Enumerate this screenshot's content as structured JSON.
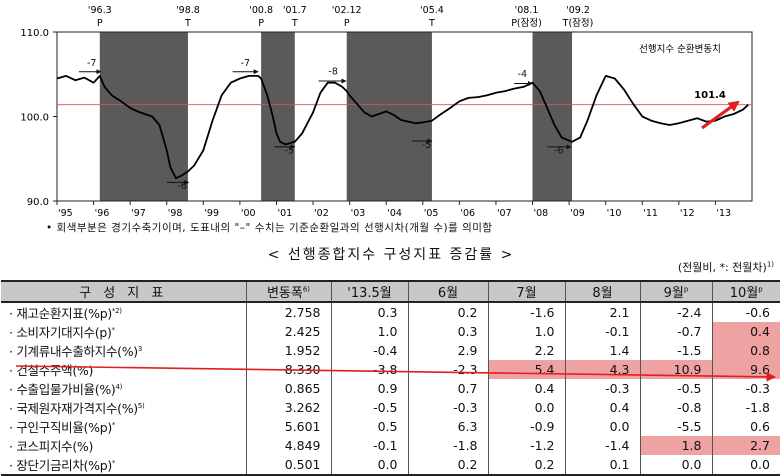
{
  "chart": {
    "y_ticks": [
      "110.0",
      "100.0",
      "90.0"
    ],
    "x_ticks": [
      "'95",
      "'96",
      "'97",
      "'98",
      "'99",
      "'00",
      "'01",
      "'02",
      "'03",
      "'04",
      "'05",
      "'06",
      "'07",
      "'08",
      "'09",
      "'10",
      "'11",
      "'12",
      "'13"
    ],
    "legend_label": "선행지수 순환변동치",
    "end_value_label": "101.4",
    "turning_points": [
      {
        "date": "'96.3",
        "type": "P"
      },
      {
        "date": "'98.8",
        "type": "T"
      },
      {
        "date": "'00.8",
        "type": "P"
      },
      {
        "date": "'01.7",
        "type": "T"
      },
      {
        "date": "'02.12",
        "type": "P"
      },
      {
        "date": "'05.4",
        "type": "T"
      },
      {
        "date": "'08.1",
        "type": "P(잠정)"
      },
      {
        "date": "'09.2",
        "type": "T(잠정)"
      }
    ],
    "lead_labels": [
      "-7",
      "-6",
      "-7",
      "-5",
      "-8",
      "-5",
      "-4",
      "-6"
    ]
  },
  "chart_data": {
    "type": "line",
    "ylim": [
      90,
      110
    ],
    "xlim": [
      1995,
      2014
    ],
    "reference_line": 101.4,
    "shaded_periods": [
      [
        1996.17,
        1998.58
      ],
      [
        2000.58,
        2001.5
      ],
      [
        2002.92,
        2005.25
      ],
      [
        2008.0,
        2009.08
      ]
    ],
    "series": [
      {
        "name": "선행지수 순환변동치",
        "x": [
          1995.0,
          1995.25,
          1995.5,
          1995.75,
          1996.0,
          1996.17,
          1996.3,
          1996.5,
          1996.75,
          1997.0,
          1997.2,
          1997.4,
          1997.6,
          1997.8,
          1997.9,
          1998.0,
          1998.1,
          1998.25,
          1998.4,
          1998.58,
          1998.75,
          1999.0,
          1999.25,
          1999.5,
          1999.75,
          2000.0,
          2000.25,
          2000.5,
          2000.58,
          2000.75,
          2000.9,
          2001.0,
          2001.1,
          2001.25,
          2001.5,
          2001.7,
          2002.0,
          2002.2,
          2002.4,
          2002.6,
          2002.8,
          2002.92,
          2003.0,
          2003.2,
          2003.4,
          2003.6,
          2003.8,
          2004.0,
          2004.2,
          2004.4,
          2004.6,
          2004.8,
          2005.0,
          2005.25,
          2005.5,
          2005.75,
          2006.0,
          2006.25,
          2006.5,
          2006.75,
          2007.0,
          2007.25,
          2007.5,
          2007.75,
          2008.0,
          2008.2,
          2008.4,
          2008.6,
          2008.8,
          2009.08,
          2009.3,
          2009.5,
          2009.75,
          2010.0,
          2010.25,
          2010.5,
          2010.75,
          2011.0,
          2011.25,
          2011.5,
          2011.75,
          2012.0,
          2012.25,
          2012.5,
          2012.75,
          2013.0,
          2013.25,
          2013.5,
          2013.75,
          2013.9
        ],
        "values": [
          104.5,
          104.8,
          104.3,
          104.6,
          104.0,
          104.8,
          103.5,
          102.5,
          101.8,
          101.0,
          100.6,
          100.3,
          100.0,
          99.0,
          97.5,
          96.0,
          94.0,
          92.7,
          93.0,
          93.5,
          94.2,
          96.0,
          99.5,
          102.5,
          104.0,
          104.5,
          104.8,
          104.8,
          104.5,
          102.5,
          100.0,
          98.0,
          97.0,
          96.7,
          97.0,
          98.0,
          100.5,
          102.8,
          104.0,
          104.0,
          103.5,
          103.0,
          102.5,
          101.5,
          100.5,
          100.0,
          100.3,
          100.6,
          100.2,
          99.6,
          99.4,
          99.2,
          99.3,
          99.5,
          100.3,
          101.0,
          101.8,
          102.2,
          102.3,
          102.5,
          102.8,
          103.0,
          103.3,
          103.5,
          104.0,
          103.0,
          101.0,
          99.0,
          97.5,
          97.0,
          97.5,
          99.5,
          102.5,
          104.8,
          104.5,
          103.2,
          101.5,
          100.0,
          99.5,
          99.2,
          99.0,
          99.2,
          99.5,
          99.8,
          99.4,
          99.5,
          100.0,
          100.3,
          100.8,
          101.4
        ]
      }
    ]
  },
  "footnote": "• 회색부분은 경기수축기이며, 도표내의 \"–\" 수치는 기준순환일과의 선행시차(개월 수)를 의미함",
  "table": {
    "title": "< 선행종합지수 구성지표 증감률 >",
    "unit_note": "(전월비, *: 전월차)",
    "unit_note_sup": "1)",
    "headers": [
      {
        "text": "구 성 지 표",
        "sup": ""
      },
      {
        "text": "변동폭",
        "sup": "6)"
      },
      {
        "text": "'13.5월",
        "sup": ""
      },
      {
        "text": "6월",
        "sup": ""
      },
      {
        "text": "7월",
        "sup": ""
      },
      {
        "text": "8월",
        "sup": ""
      },
      {
        "text": "9월",
        "sup": "p"
      },
      {
        "text": "10월",
        "sup": "p"
      }
    ],
    "rows": [
      {
        "label": "· 재고순환지표(%p)",
        "sup": "*2)",
        "cells": [
          "2.758",
          "0.3",
          "0.2",
          "-1.6",
          "2.1",
          "-2.4",
          "-0.6"
        ],
        "hl": []
      },
      {
        "label": "· 소비자기대지수(p)",
        "sup": "*",
        "cells": [
          "2.425",
          "1.0",
          "0.3",
          "1.0",
          "-0.1",
          "-0.7",
          "0.4"
        ],
        "hl": [
          6
        ]
      },
      {
        "label": "· 기계류내수출하지수(%)",
        "sup": "3",
        "cells": [
          "1.952",
          "-0.4",
          "2.9",
          "2.2",
          "1.4",
          "-1.5",
          "0.8"
        ],
        "hl": [
          6
        ]
      },
      {
        "label": "· 건설수주액(%)",
        "sup": "",
        "cells": [
          "8.330",
          "-3.8",
          "-2.3",
          "5.4",
          "4.3",
          "10.9",
          "9.6"
        ],
        "hl": [
          3,
          4,
          5,
          6
        ]
      },
      {
        "label": "· 수출입물가비율(%)",
        "sup": "4)",
        "cells": [
          "0.865",
          "0.9",
          "0.7",
          "0.4",
          "-0.3",
          "-0.5",
          "-0.3"
        ],
        "hl": []
      },
      {
        "label": "· 국제원자재가격지수(%)",
        "sup": "5)",
        "cells": [
          "3.262",
          "-0.5",
          "-0.3",
          "0.0",
          "0.4",
          "-0.8",
          "-1.8"
        ],
        "hl": []
      },
      {
        "label": "· 구인구직비율(%p)",
        "sup": "*",
        "cells": [
          "5.601",
          "0.5",
          "6.3",
          "-0.9",
          "0.0",
          "-5.5",
          "0.6"
        ],
        "hl": []
      },
      {
        "label": "· 코스피지수(%)",
        "sup": "",
        "cells": [
          "4.849",
          "-0.1",
          "-1.8",
          "-1.2",
          "-1.4",
          "1.8",
          "2.7"
        ],
        "hl": [
          5,
          6
        ]
      },
      {
        "label": "· 장단기금리차(%p)",
        "sup": "*",
        "cells": [
          "0.501",
          "0.0",
          "0.2",
          "0.2",
          "0.1",
          "0.0",
          "0.0"
        ],
        "hl": []
      }
    ]
  },
  "colors": {
    "shade": "#5a5a5a",
    "reference_line": "#e05050",
    "arrow": "#e0201e",
    "highlight": "#efa2a2",
    "header_bg": "#c8c8c8"
  }
}
